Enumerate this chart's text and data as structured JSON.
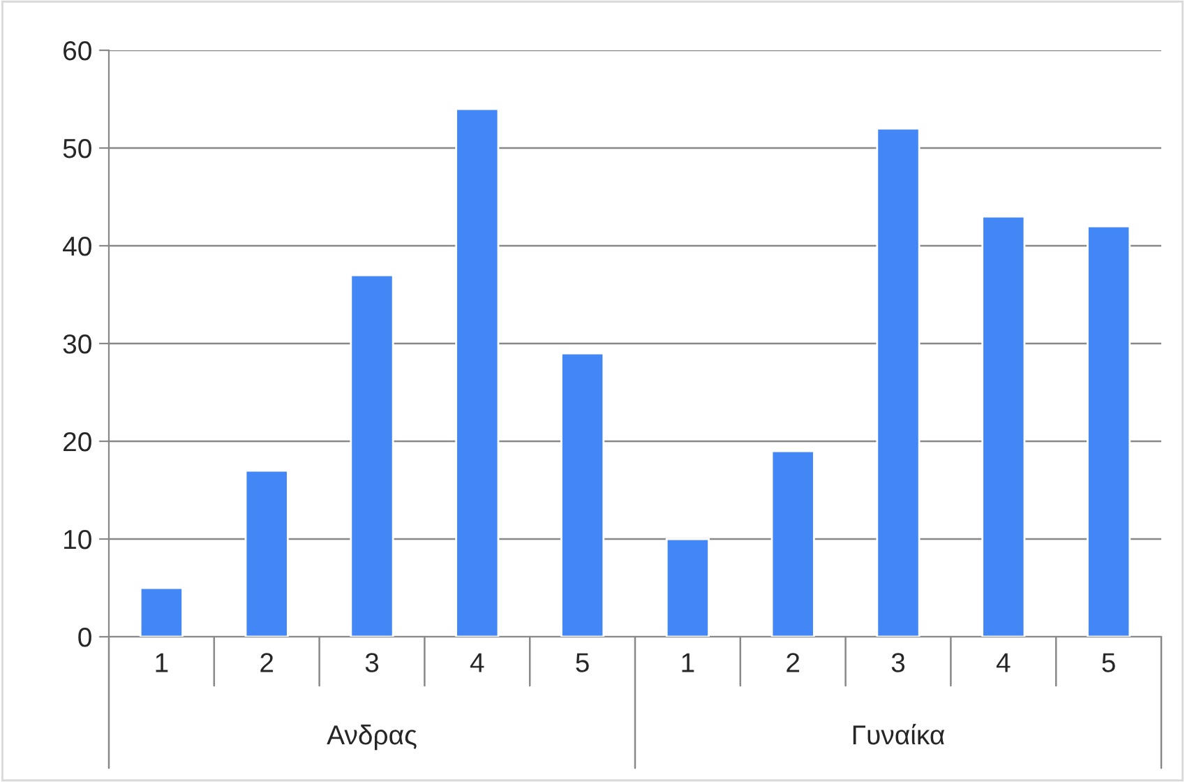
{
  "chart_data": {
    "type": "bar",
    "categories": [
      "1",
      "2",
      "3",
      "4",
      "5",
      "1",
      "2",
      "3",
      "4",
      "5"
    ],
    "values": [
      5,
      17,
      37,
      54,
      29,
      10,
      19,
      52,
      43,
      42
    ],
    "color": "#4287f5",
    "ylim": [
      0,
      60
    ],
    "yticks": [
      0,
      10,
      20,
      30,
      40,
      50,
      60
    ],
    "grid": "y",
    "annotations": [
      "Ανδρας",
      "Γυναίκα"
    ]
  }
}
